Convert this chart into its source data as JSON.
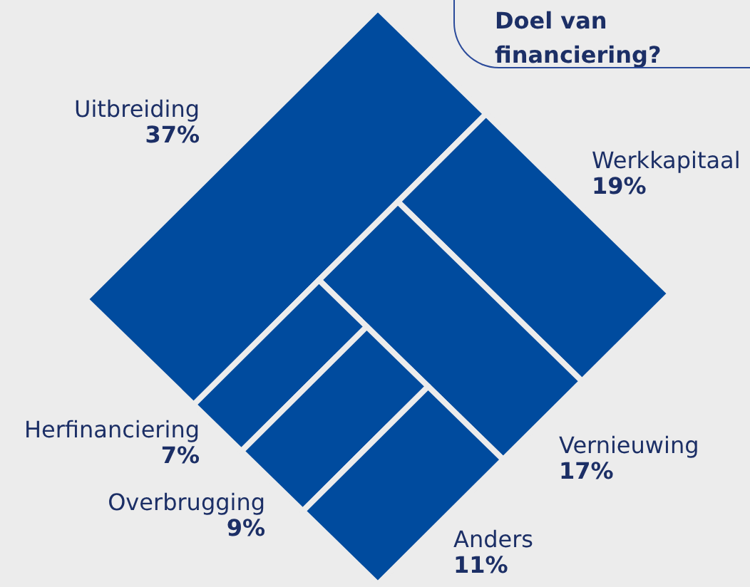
{
  "chart_data": {
    "type": "other",
    "title": "Doel van financiering?",
    "categories": [
      "Uitbreiding",
      "Werkkapitaal",
      "Vernieuwing",
      "Herfinanciering",
      "Overbrugging",
      "Anders"
    ],
    "values": [
      37,
      19,
      17,
      7,
      9,
      11
    ],
    "value_labels": [
      "37%",
      "19%",
      "17%",
      "7%",
      "9%",
      "11%"
    ],
    "color": "#004b9e"
  }
}
